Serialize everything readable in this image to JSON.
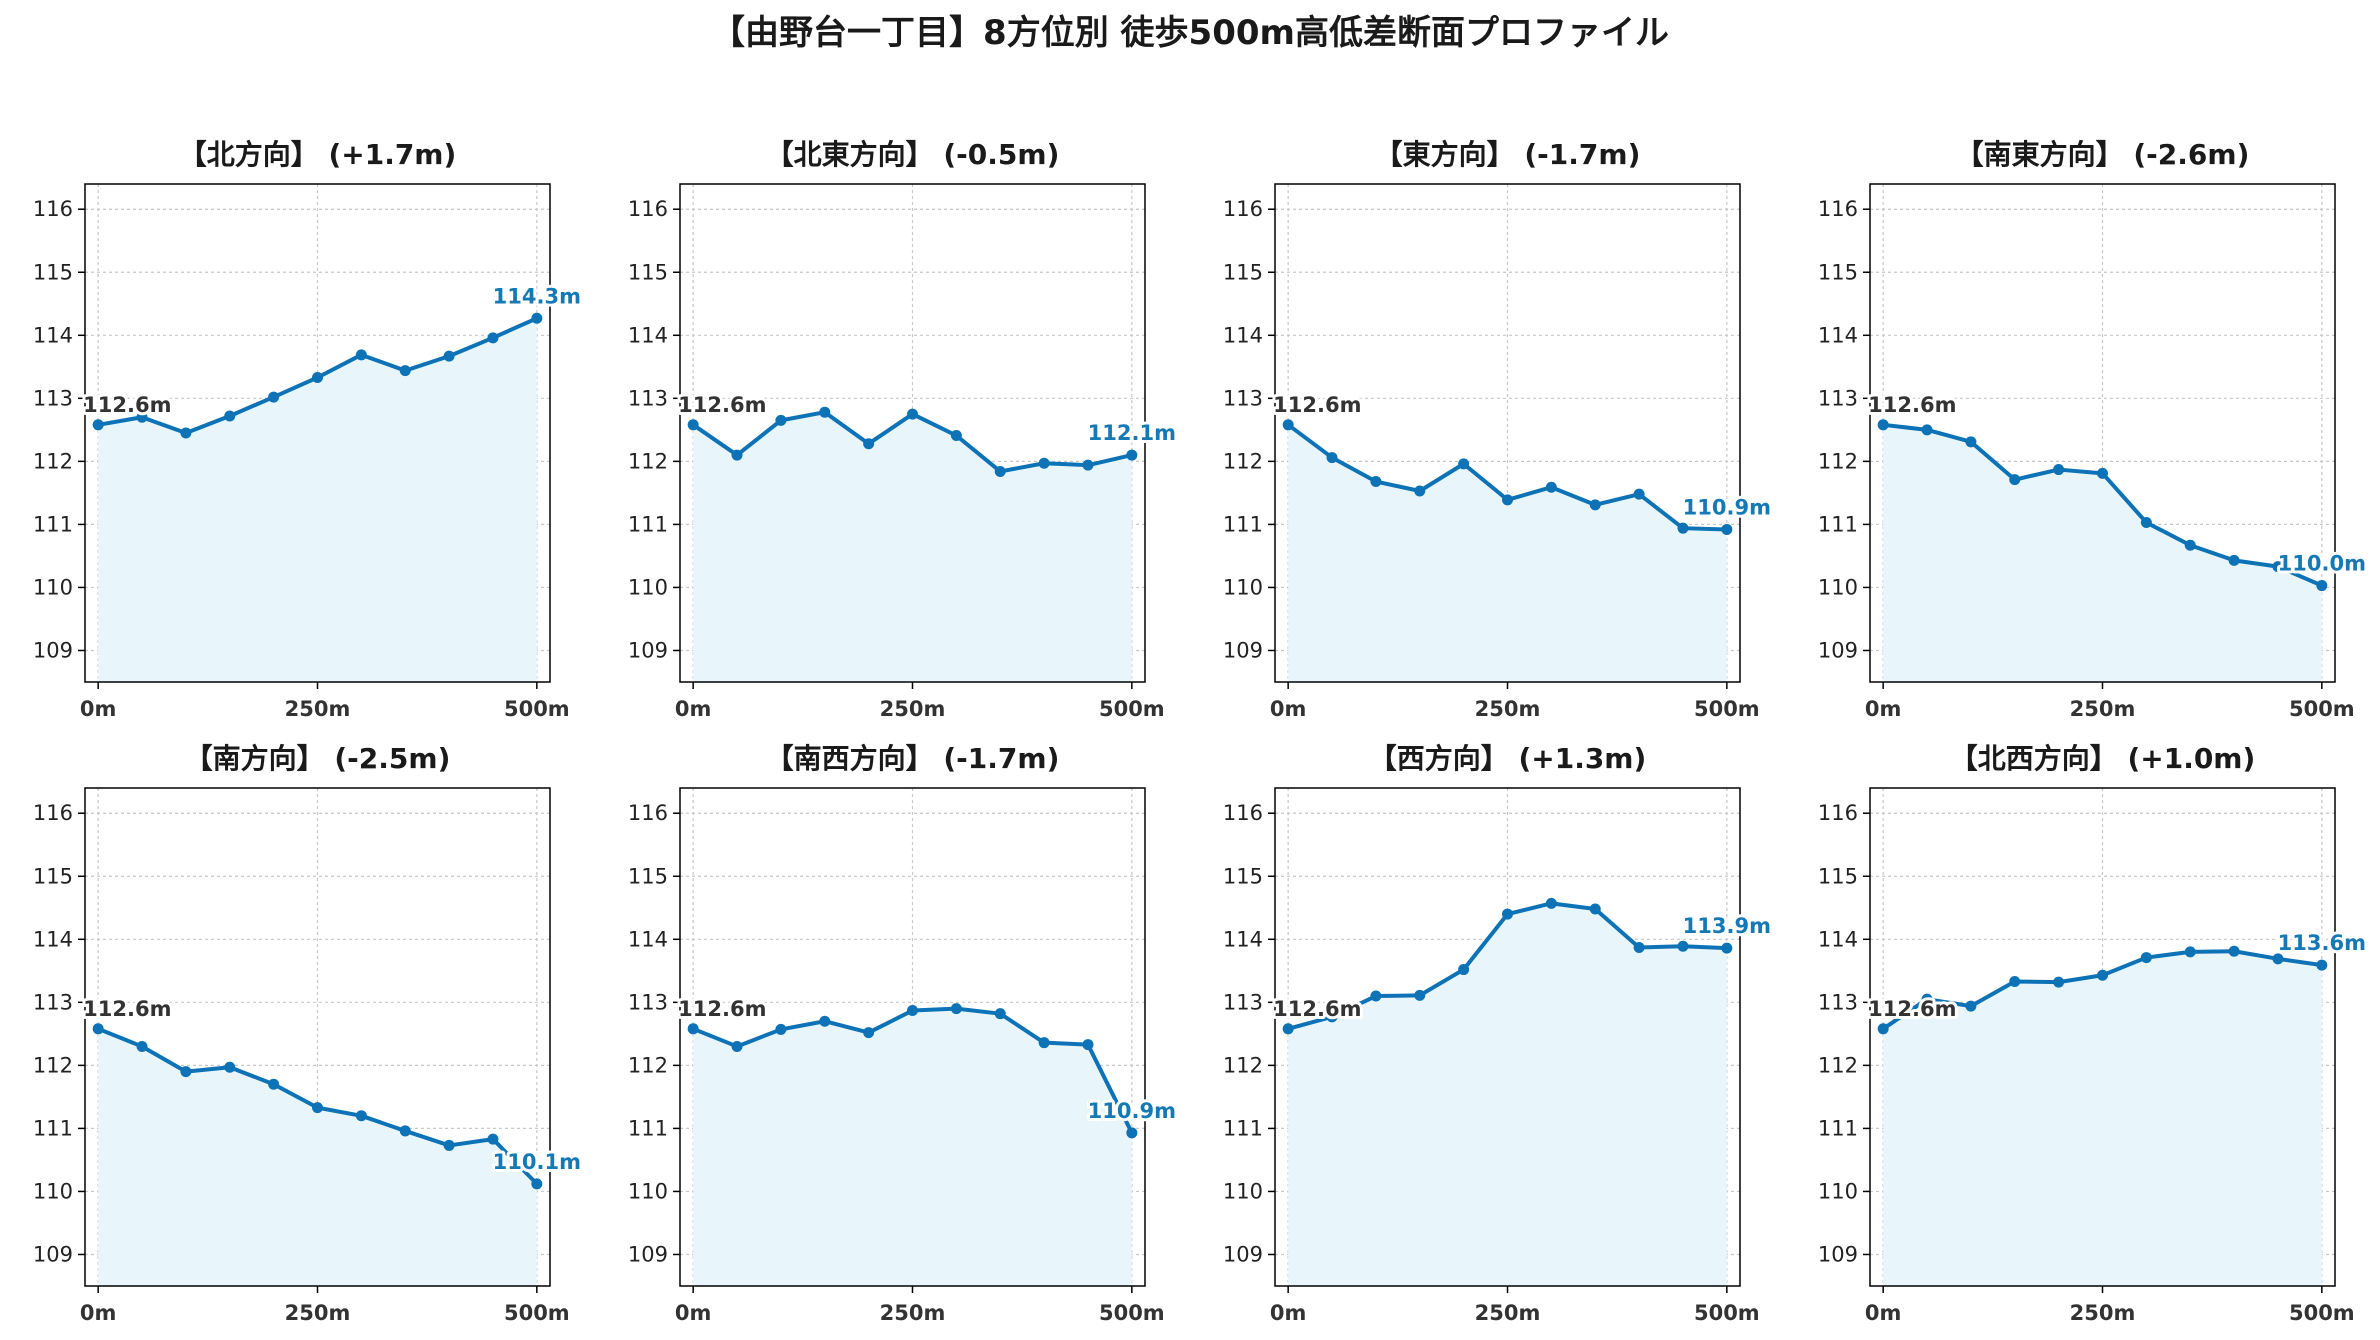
{
  "chart_data": {
    "type": "line",
    "title": "【由野台一丁目】8方位別 徒歩500m高低差断面プロファイル",
    "x": [
      0,
      50,
      100,
      150,
      200,
      250,
      300,
      350,
      400,
      450,
      500
    ],
    "xticks": [
      "0m",
      "250m",
      "500m"
    ],
    "yticks": [
      "109",
      "110",
      "111",
      "112",
      "113",
      "114",
      "115",
      "116"
    ],
    "ylim": [
      108.5,
      116.4
    ],
    "xlim": [
      -15,
      515
    ],
    "grid": true,
    "colors": {
      "line": "#0d73b6",
      "fill": "#e8f6fc",
      "start_label": "#333333",
      "end_label": "#1479b5"
    },
    "panels": [
      {
        "title": "【北方向】 (+1.7m)",
        "start_label": "112.6m",
        "end_label": "114.3m",
        "values": [
          112.58,
          112.7,
          112.45,
          112.72,
          113.02,
          113.33,
          113.69,
          113.44,
          113.67,
          113.96,
          114.27
        ]
      },
      {
        "title": "【北東方向】 (-0.5m)",
        "start_label": "112.6m",
        "end_label": "112.1m",
        "values": [
          112.58,
          112.1,
          112.65,
          112.78,
          112.28,
          112.75,
          112.41,
          111.84,
          111.97,
          111.94,
          112.1
        ]
      },
      {
        "title": "【東方向】 (-1.7m)",
        "start_label": "112.6m",
        "end_label": "110.9m",
        "values": [
          112.58,
          112.06,
          111.68,
          111.53,
          111.96,
          111.39,
          111.59,
          111.31,
          111.48,
          110.94,
          110.92
        ]
      },
      {
        "title": "【南東方向】 (-2.6m)",
        "start_label": "112.6m",
        "end_label": "110.0m",
        "values": [
          112.58,
          112.5,
          112.31,
          111.71,
          111.87,
          111.81,
          111.03,
          110.67,
          110.43,
          110.33,
          110.03
        ]
      },
      {
        "title": "【南方向】 (-2.5m)",
        "start_label": "112.6m",
        "end_label": "110.1m",
        "values": [
          112.58,
          112.3,
          111.9,
          111.97,
          111.7,
          111.33,
          111.2,
          110.96,
          110.73,
          110.83,
          110.12
        ]
      },
      {
        "title": "【南西方向】 (-1.7m)",
        "start_label": "112.6m",
        "end_label": "110.9m",
        "values": [
          112.58,
          112.3,
          112.57,
          112.7,
          112.52,
          112.87,
          112.9,
          112.82,
          112.36,
          112.33,
          110.93
        ]
      },
      {
        "title": "【西方向】 (+1.3m)",
        "start_label": "112.6m",
        "end_label": "113.9m",
        "values": [
          112.58,
          112.77,
          113.1,
          113.11,
          113.52,
          114.4,
          114.57,
          114.48,
          113.87,
          113.89,
          113.86
        ]
      },
      {
        "title": "【北西方向】 (+1.0m)",
        "start_label": "112.6m",
        "end_label": "113.6m",
        "values": [
          112.58,
          113.05,
          112.94,
          113.33,
          113.32,
          113.43,
          113.71,
          113.8,
          113.81,
          113.69,
          113.59
        ]
      }
    ]
  }
}
